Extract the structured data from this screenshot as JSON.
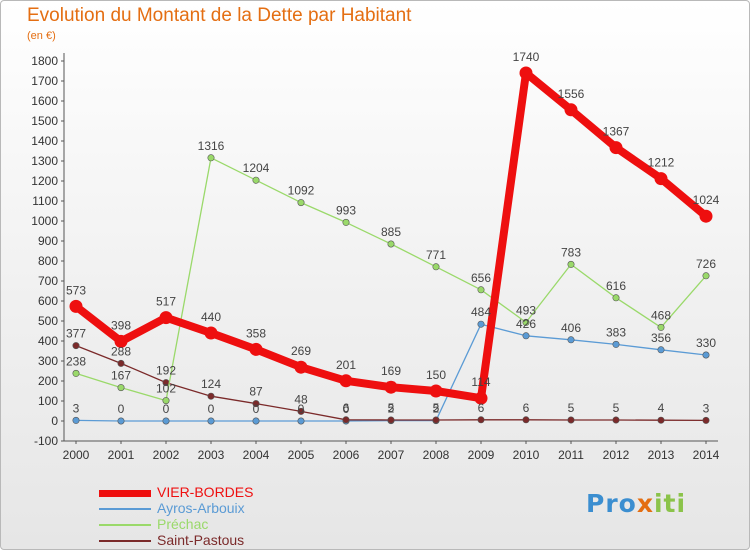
{
  "title": "Evolution du Montant de la Dette par Habitant",
  "unit": "(en €)",
  "brand": {
    "p1": "Pro",
    "p2": "x",
    "p3": "iti"
  },
  "chart_data": {
    "type": "line",
    "x": [
      "2000",
      "2001",
      "2002",
      "2003",
      "2004",
      "2005",
      "2006",
      "2007",
      "2008",
      "2009",
      "2010",
      "2011",
      "2012",
      "2013",
      "2014"
    ],
    "y_ticks": [
      "-100",
      "0",
      "100",
      "200",
      "300",
      "400",
      "500",
      "600",
      "700",
      "800",
      "900",
      "1000",
      "1100",
      "1200",
      "1300",
      "1400",
      "1500",
      "1600",
      "1700",
      "1800"
    ],
    "ylim": [
      -100,
      1800
    ],
    "grid": false,
    "legend_position": "bottom-left",
    "series": [
      {
        "name": "VIER-BORDES",
        "color": "#ee0f0f",
        "values": [
          573,
          398,
          517,
          440,
          358,
          269,
          201,
          169,
          150,
          114,
          1740,
          1556,
          1367,
          1212,
          1024
        ],
        "labels": [
          "573",
          "398",
          "517",
          "440",
          "358",
          "269",
          "201",
          "169",
          "150",
          "114",
          "1740",
          "1556",
          "1367",
          "1212",
          "1024"
        ]
      },
      {
        "name": "Ayros-Arbouix",
        "color": "#5b9bd5",
        "values": [
          3,
          0,
          0,
          0,
          0,
          0,
          0,
          2,
          2,
          484,
          426,
          406,
          383,
          356,
          330
        ],
        "labels": [
          "3",
          "0",
          "0",
          "0",
          "0",
          "0",
          "0",
          "2",
          "2",
          "484",
          "426",
          "406",
          "383",
          "356",
          "330"
        ]
      },
      {
        "name": "Préchac",
        "color": "#9ad96a",
        "values": [
          238,
          167,
          102,
          1316,
          1204,
          1092,
          993,
          885,
          771,
          656,
          493,
          783,
          616,
          468,
          726
        ],
        "labels": [
          "238",
          "167",
          "102",
          "1316",
          "1204",
          "1092",
          "993",
          "885",
          "771",
          "656",
          "493",
          "783",
          "616",
          "468",
          "726"
        ]
      },
      {
        "name": "Saint-Pastous",
        "color": "#7b2a2a",
        "values": [
          377,
          288,
          192,
          124,
          87,
          48,
          6,
          5,
          5,
          6,
          6,
          5,
          5,
          4,
          3
        ],
        "labels": [
          "377",
          "288",
          "192",
          "124",
          "87",
          "48",
          "6",
          "5",
          "5",
          "6",
          "6",
          "5",
          "5",
          "4",
          "3"
        ]
      }
    ]
  }
}
